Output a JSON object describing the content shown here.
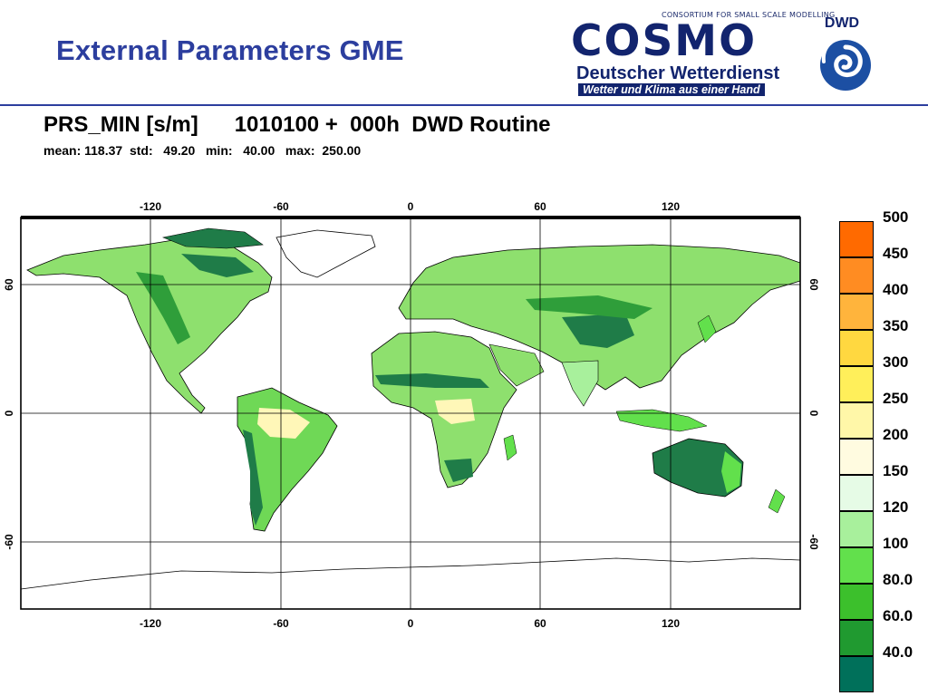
{
  "slide": {
    "title": "External Parameters GME"
  },
  "logo": {
    "consortium": "CONSORTIUM FOR SMALL SCALE MODELLING",
    "cosmo": "COSMO",
    "dwd_name": "Deutscher Wetterdienst",
    "slogan": "Wetter und Klima aus einer Hand",
    "emblem_text": "DWD"
  },
  "plot": {
    "title": "PRS_MIN [s/m]      1010100 +  000h  DWD Routine",
    "stats": "mean: 118.37  std:   49.20   min:   40.00   max:  250.00"
  },
  "map": {
    "lon_ticks": [
      "-120",
      "-60",
      "0",
      "60",
      "120"
    ],
    "lat_ticks": [
      "60",
      "0",
      "-60"
    ]
  },
  "legend": {
    "levels": [
      {
        "label": "500",
        "color": "#ff6a00"
      },
      {
        "label": "450",
        "color": "#ff8c22"
      },
      {
        "label": "400",
        "color": "#ffb43c"
      },
      {
        "label": "350",
        "color": "#ffd840"
      },
      {
        "label": "300",
        "color": "#ffef5a"
      },
      {
        "label": "250",
        "color": "#fff7a8"
      },
      {
        "label": "200",
        "color": "#fffbe0"
      },
      {
        "label": "150",
        "color": "#e6fbe6"
      },
      {
        "label": "120",
        "color": "#a8f09c"
      },
      {
        "label": "100",
        "color": "#62e04c"
      },
      {
        "label": "80.0",
        "color": "#3cc02c"
      },
      {
        "label": "60.0",
        "color": "#209a30"
      },
      {
        "label": "40.0",
        "color": "#00705a"
      }
    ]
  }
}
